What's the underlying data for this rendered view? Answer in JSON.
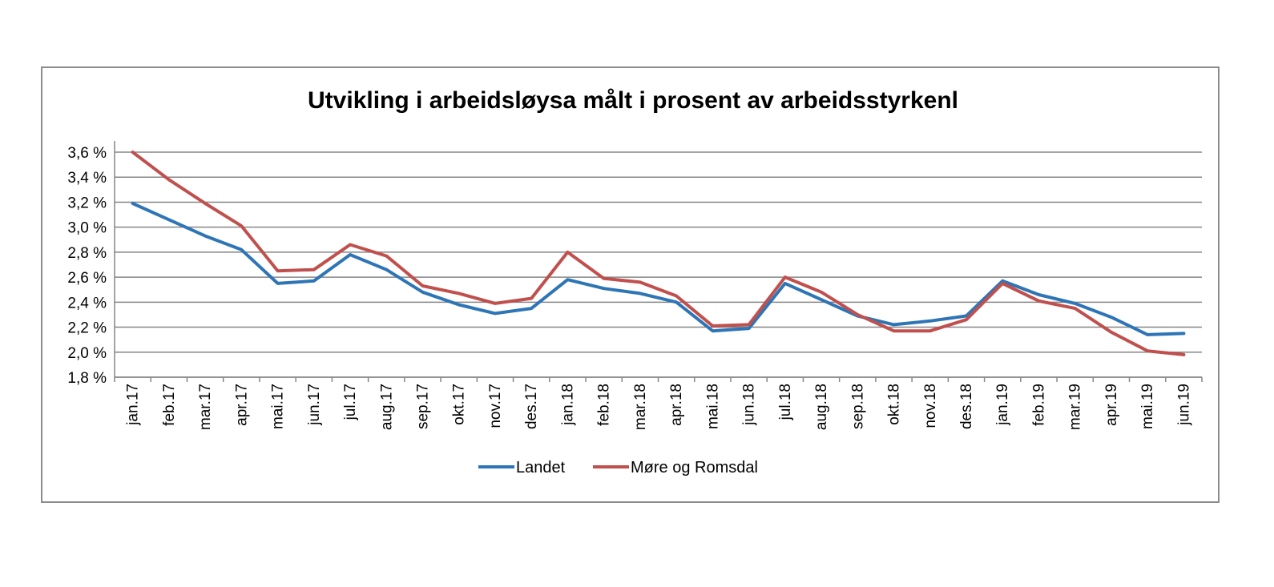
{
  "chart_data": {
    "type": "line",
    "title": "Utvikling i arbeidsløysa målt i prosent av arbeidsstyrkenl",
    "xlabel": "",
    "ylabel": "",
    "ylim": [
      1.8,
      3.6
    ],
    "yticks": [
      "1,8 %",
      "2,0 %",
      "2,2 %",
      "2,4 %",
      "2,6 %",
      "2,8 %",
      "3,0 %",
      "3,2 %",
      "3,4 %",
      "3,6 %"
    ],
    "grid": true,
    "legend_position": "bottom",
    "categories": [
      "jan.17",
      "feb.17",
      "mar.17",
      "apr.17",
      "mai.17",
      "jun.17",
      "jul.17",
      "aug.17",
      "sep.17",
      "okt.17",
      "nov.17",
      "des.17",
      "jan.18",
      "feb.18",
      "mar.18",
      "apr.18",
      "mai.18",
      "jun.18",
      "jul.18",
      "aug.18",
      "sep.18",
      "okt.18",
      "nov.18",
      "des.18",
      "jan.19",
      "feb.19",
      "mar.19",
      "apr.19",
      "mai.19",
      "jun.19"
    ],
    "series": [
      {
        "name": "Landet",
        "color": "#2e75b6",
        "values": [
          3.19,
          3.06,
          2.93,
          2.82,
          2.55,
          2.57,
          2.78,
          2.66,
          2.48,
          2.38,
          2.31,
          2.35,
          2.58,
          2.51,
          2.47,
          2.4,
          2.17,
          2.19,
          2.55,
          2.42,
          2.29,
          2.22,
          2.25,
          2.29,
          2.57,
          2.46,
          2.39,
          2.28,
          2.14,
          2.15
        ]
      },
      {
        "name": "Møre og Romsdal",
        "color": "#c0504d",
        "values": [
          3.6,
          3.38,
          3.19,
          3.01,
          2.65,
          2.66,
          2.86,
          2.77,
          2.53,
          2.47,
          2.39,
          2.43,
          2.8,
          2.59,
          2.56,
          2.45,
          2.21,
          2.22,
          2.6,
          2.48,
          2.3,
          2.17,
          2.17,
          2.26,
          2.55,
          2.41,
          2.35,
          2.16,
          2.01,
          1.98
        ]
      }
    ]
  }
}
